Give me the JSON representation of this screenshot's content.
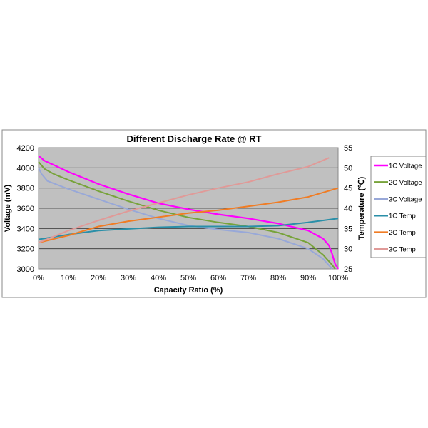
{
  "chart_data": {
    "type": "line",
    "title": "Different Discharge Rate @ RT",
    "xlabel": "Capacity Ratio (%)",
    "ylabel": "Voltage (mV)",
    "y2label": "Temperature (℃)",
    "xlim": [
      0,
      100
    ],
    "ylim": [
      3000,
      4200
    ],
    "y2lim": [
      25,
      55
    ],
    "grid": true,
    "legend_position": "right",
    "xticks": [
      "0%",
      "10%",
      "20%",
      "30%",
      "40%",
      "50%",
      "60%",
      "70%",
      "80%",
      "90%",
      "100%"
    ],
    "yticks": [
      "3000",
      "3200",
      "3400",
      "3600",
      "3800",
      "4000",
      "4200"
    ],
    "y2ticks": [
      "25",
      "30",
      "35",
      "40",
      "45",
      "50",
      "55"
    ],
    "series": [
      {
        "name": "1C Voltage",
        "axis": "left",
        "color": "#ff00ff",
        "x": [
          0,
          2,
          5,
          10,
          20,
          30,
          40,
          50,
          60,
          70,
          80,
          90,
          95,
          97,
          98,
          99,
          100
        ],
        "y": [
          4120,
          4070,
          4030,
          3960,
          3840,
          3740,
          3650,
          3590,
          3540,
          3500,
          3450,
          3380,
          3300,
          3230,
          3150,
          3050,
          3000
        ]
      },
      {
        "name": "2C Voltage",
        "axis": "left",
        "color": "#77a33a",
        "x": [
          0,
          2,
          5,
          10,
          20,
          30,
          40,
          50,
          60,
          70,
          80,
          90,
          95,
          98,
          99
        ],
        "y": [
          4060,
          3990,
          3940,
          3880,
          3770,
          3670,
          3580,
          3510,
          3460,
          3420,
          3360,
          3260,
          3140,
          3040,
          3000
        ]
      },
      {
        "name": "3C Voltage",
        "axis": "left",
        "color": "#98a8d8",
        "x": [
          0,
          1,
          3,
          10,
          20,
          30,
          40,
          50,
          60,
          70,
          80,
          90,
          95,
          98
        ],
        "y": [
          4000,
          3940,
          3870,
          3790,
          3690,
          3590,
          3500,
          3430,
          3390,
          3360,
          3300,
          3200,
          3100,
          3000
        ]
      },
      {
        "name": "1C Temp",
        "axis": "right",
        "color": "#2a8fa8",
        "x": [
          0,
          10,
          20,
          30,
          40,
          50,
          60,
          70,
          80,
          90,
          100
        ],
        "y": [
          32.3,
          33.5,
          34.5,
          34.9,
          35.3,
          35.5,
          35.5,
          35.5,
          35.7,
          36.5,
          37.5
        ]
      },
      {
        "name": "2C Temp",
        "axis": "right",
        "color": "#f07c24",
        "x": [
          0,
          10,
          20,
          30,
          40,
          50,
          60,
          70,
          80,
          90,
          100
        ],
        "y": [
          31.5,
          33.3,
          35.5,
          36.8,
          37.8,
          38.8,
          39.5,
          40.5,
          41.5,
          42.8,
          45
        ]
      },
      {
        "name": "3C Temp",
        "axis": "right",
        "color": "#e09a98",
        "x": [
          0,
          10,
          20,
          30,
          40,
          50,
          60,
          70,
          80,
          90,
          97
        ],
        "y": [
          31.5,
          34.5,
          37,
          39.3,
          41.3,
          43.3,
          45,
          46.5,
          48.5,
          50.3,
          52.5
        ]
      }
    ]
  }
}
